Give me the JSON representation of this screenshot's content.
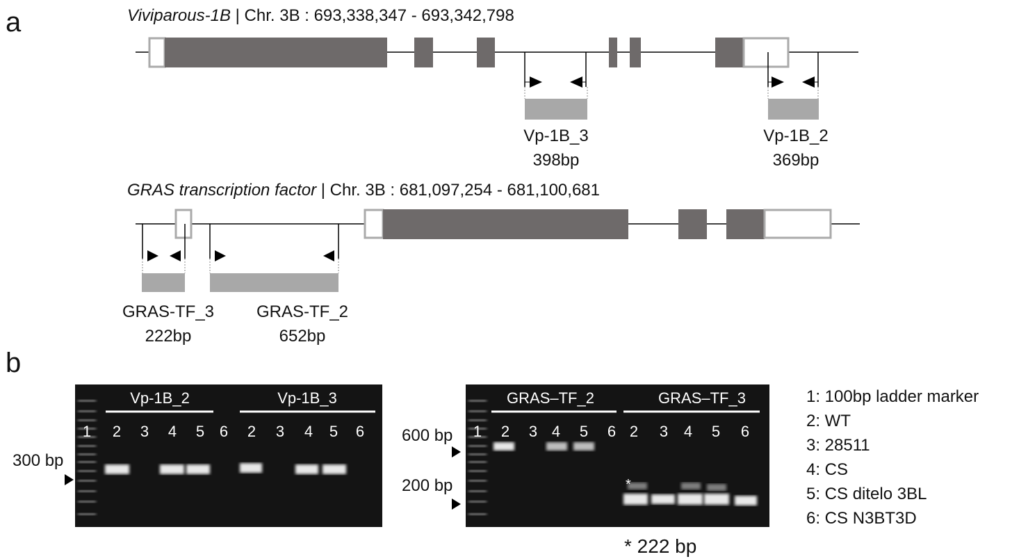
{
  "panel_a": {
    "label": "a",
    "gene1": {
      "name": "Viviparous-1B",
      "location": "| Chr. 3B : 693,338,347 - 693,342,798",
      "amplicons": [
        {
          "name": "Vp-1B_3",
          "size": "398bp"
        },
        {
          "name": "Vp-1B_2",
          "size": "369bp"
        }
      ]
    },
    "gene2": {
      "name": "GRAS transcription factor",
      "location": "| Chr. 3B : 681,097,254 - 681,100,681",
      "amplicons": [
        {
          "name": "GRAS-TF_3",
          "size": "222bp"
        },
        {
          "name": "GRAS-TF_2",
          "size": "652bp"
        }
      ]
    }
  },
  "panel_b": {
    "label": "b",
    "gel1": {
      "groups": [
        "Vp-1B_2",
        "Vp-1B_3"
      ],
      "lanes": [
        "1",
        "2",
        "3",
        "4",
        "5",
        "6",
        "2",
        "3",
        "4",
        "5",
        "6"
      ],
      "markers": [
        "300 bp"
      ]
    },
    "gel2": {
      "groups": [
        "GRAS–TF_2",
        "GRAS–TF_3"
      ],
      "lanes": [
        "1",
        "2",
        "3",
        "4",
        "5",
        "6",
        "2",
        "3",
        "4",
        "5",
        "6"
      ],
      "markers": [
        "600 bp",
        "200 bp"
      ],
      "star": "*"
    },
    "legend": [
      "1: 100bp ladder marker",
      "2: WT",
      "3: 28511",
      "4: CS",
      "5: CS ditelo 3BL",
      "6: CS N3BT3D"
    ],
    "note": "* 222 bp"
  }
}
